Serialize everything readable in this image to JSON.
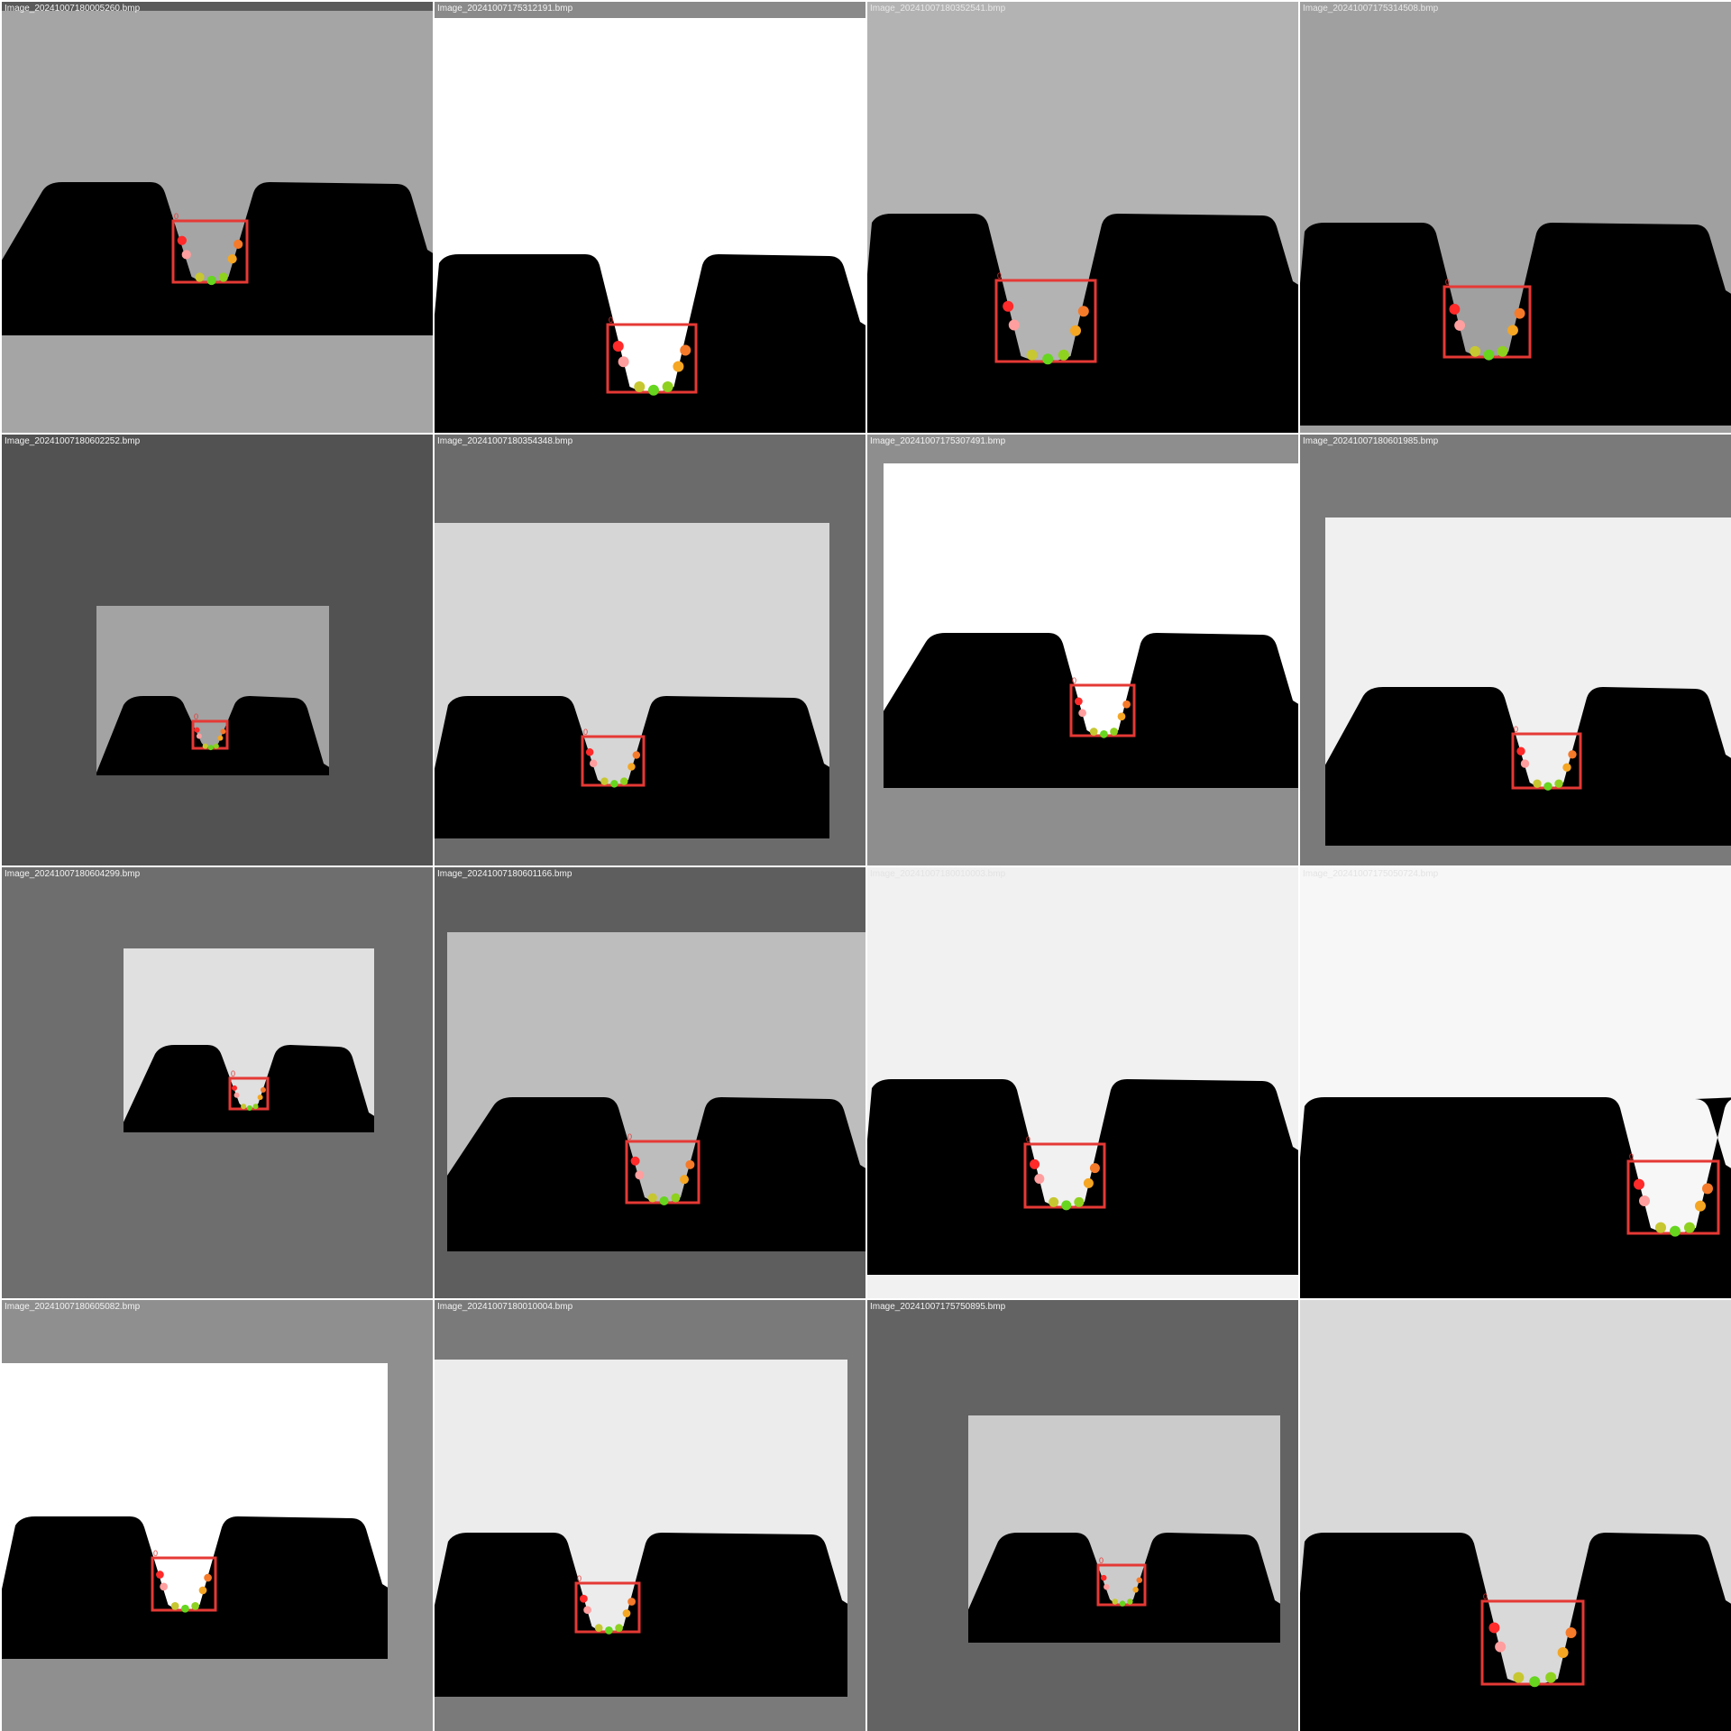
{
  "colors": {
    "gear": "#000000",
    "bbox": "#e53935",
    "keypoints": [
      "#ff2a2a",
      "#ff9e9e",
      "#c7c731",
      "#66d61f",
      "#8fd11f",
      "#f5a623",
      "#f57a2a"
    ]
  },
  "bbox_class_label": "0",
  "tiles": [
    {
      "caption": "Image_20241007180005260.bmp",
      "caption_color": "#f2f2f2",
      "outer_bg": "#5a5a5a",
      "inner_bg": "#a5a5a5"
    },
    {
      "caption": "Image_20241007175312191.bmp",
      "caption_color": "#f2f2f2",
      "outer_bg": "#8a8a8a",
      "inner_bg": "#ffffff"
    },
    {
      "caption": "Image_20241007180352541.bmp",
      "caption_color": "#e6e6e6",
      "outer_bg": "#b3b3b3",
      "inner_bg": "#b3b3b3"
    },
    {
      "caption": "Image_20241007175314508.bmp",
      "caption_color": "#e6e6e6",
      "outer_bg": "#9e9e9e",
      "inner_bg": "#a0a0a0"
    },
    {
      "caption": "Image_20241007180602252.bmp",
      "caption_color": "#f2f2f2",
      "outer_bg": "#525252",
      "inner_bg": "#a3a3a3"
    },
    {
      "caption": "Image_20241007180354348.bmp",
      "caption_color": "#f2f2f2",
      "outer_bg": "#6b6b6b",
      "inner_bg": "#d6d6d6"
    },
    {
      "caption": "Image_20241007175307491.bmp",
      "caption_color": "#f2f2f2",
      "outer_bg": "#8e8e8e",
      "inner_bg": "#ffffff"
    },
    {
      "caption": "Image_20241007180601985.bmp",
      "caption_color": "#f2f2f2",
      "outer_bg": "#7a7a7a",
      "inner_bg": "#f0f0f0"
    },
    {
      "caption": "Image_20241007180604299.bmp",
      "caption_color": "#f2f2f2",
      "outer_bg": "#6e6e6e",
      "inner_bg": "#e0e0e0"
    },
    {
      "caption": "Image_20241007180601166.bmp",
      "caption_color": "#f2f2f2",
      "outer_bg": "#5e5e5e",
      "inner_bg": "#bdbdbd"
    },
    {
      "caption": "Image_20241007180010003.bmp",
      "caption_color": "#e3e3e3",
      "outer_bg": "#f1f1f1",
      "inner_bg": "#f1f1f1"
    },
    {
      "caption": "Image_20241007175050724.bmp",
      "caption_color": "#e3e3e3",
      "outer_bg": "#f5f5f5",
      "inner_bg": "#f7f7f7"
    },
    {
      "caption": "Image_20241007180605082.bmp",
      "caption_color": "#f2f2f2",
      "outer_bg": "#8f8f8f",
      "inner_bg": "#ffffff"
    },
    {
      "caption": "Image_20241007180010004.bmp",
      "caption_color": "#f2f2f2",
      "outer_bg": "#7a7a7a",
      "inner_bg": "#ececec"
    },
    {
      "caption": "Image_20241007175750895.bmp",
      "caption_color": "#f2f2f2",
      "outer_bg": "#636363",
      "inner_bg": "#cbcbcb"
    },
    {
      "caption": "",
      "caption_color": "#f2f2f2",
      "outer_bg": "#d9d9d9",
      "inner_bg": "#d9d9d9"
    }
  ]
}
